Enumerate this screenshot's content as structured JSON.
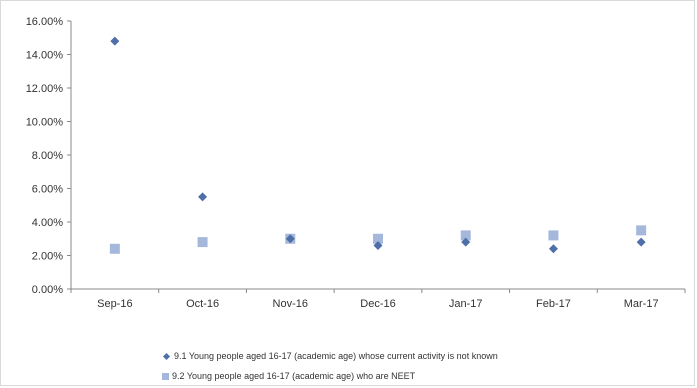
{
  "chart_data": {
    "type": "scatter",
    "categories": [
      "Sep-16",
      "Oct-16",
      "Nov-16",
      "Dec-16",
      "Jan-17",
      "Feb-17",
      "Mar-17"
    ],
    "series": [
      {
        "name": "9.1 Young people aged 16-17 (academic age) whose current activity is not known",
        "marker": "diamond",
        "color": "#4f6fa8",
        "values": [
          0.148,
          0.055,
          0.03,
          0.026,
          0.028,
          0.024,
          0.028
        ]
      },
      {
        "name": "9.2 Young people aged 16-17 (academic age) who are NEET",
        "marker": "square",
        "color": "#a5b8dc",
        "values": [
          0.024,
          0.028,
          0.03,
          0.03,
          0.032,
          0.032,
          0.035
        ]
      }
    ],
    "ylim": [
      0,
      0.16
    ],
    "yticks": [
      "0.00%",
      "2.00%",
      "4.00%",
      "6.00%",
      "8.00%",
      "10.00%",
      "12.00%",
      "14.00%",
      "16.00%"
    ],
    "title": "",
    "xlabel": "",
    "ylabel": "",
    "grid": false,
    "legend_position": "bottom"
  }
}
